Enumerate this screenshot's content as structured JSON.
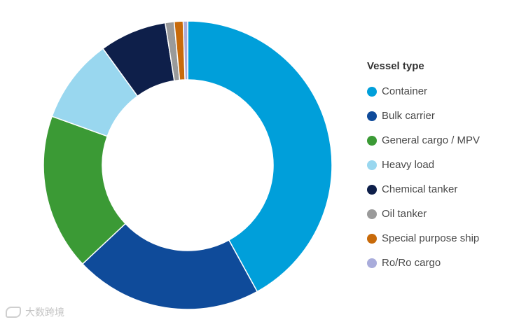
{
  "chart_data": {
    "type": "pie",
    "donut": true,
    "legend_title": "Vessel type",
    "legend_position": "right",
    "slices": [
      {
        "label": "Container",
        "value": 42.0,
        "color": "#009fda"
      },
      {
        "label": "Bulk carrier",
        "value": 21.0,
        "color": "#0f4b9a"
      },
      {
        "label": "General cargo / MPV",
        "value": 17.5,
        "color": "#3b9a35"
      },
      {
        "label": "Heavy load",
        "value": 9.5,
        "color": "#99d7ef"
      },
      {
        "label": "Chemical tanker",
        "value": 7.5,
        "color": "#0e1f4a"
      },
      {
        "label": "Oil tanker",
        "value": 1.0,
        "color": "#9a9a9a"
      },
      {
        "label": "Special purpose ship",
        "value": 1.0,
        "color": "#c86a0a"
      },
      {
        "label": "Ro/Ro cargo",
        "value": 0.5,
        "color": "#a9acdb"
      }
    ]
  },
  "watermark": {
    "text": "大数跨境"
  }
}
